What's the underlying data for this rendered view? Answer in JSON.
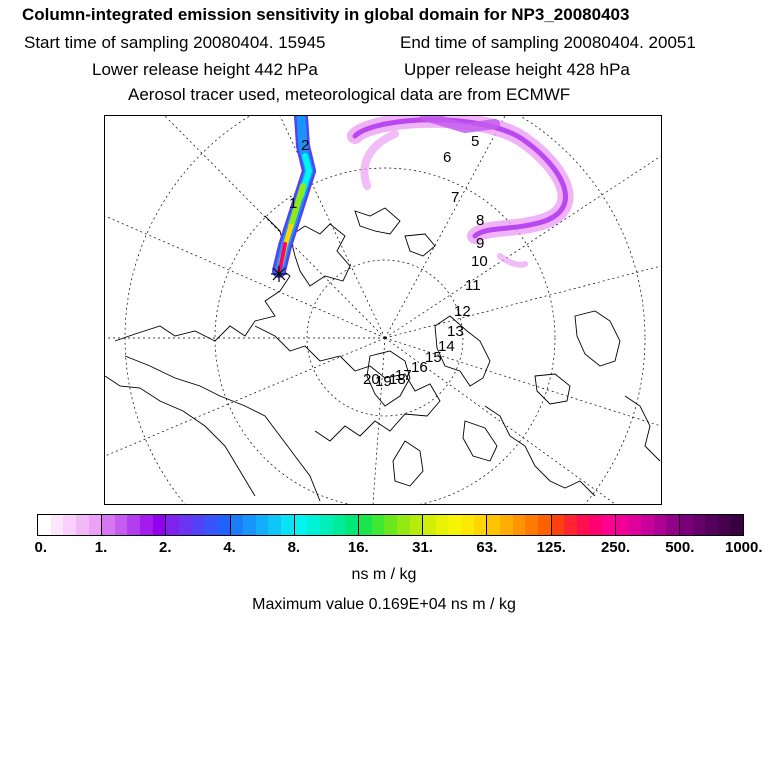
{
  "title": "Column-integrated emission sensitivity in global domain for NP3_20080403",
  "start_time": "Start time of sampling 20080404. 15945",
  "end_time": "End time of sampling 20080404. 20051",
  "lower_release": "Lower release height  442 hPa",
  "upper_release": "Upper release height  428 hPa",
  "tracer_info": "Aerosol tracer used, meteorological data are from ECMWF",
  "map": {
    "release_marker": "release-site-star",
    "day_labels": [
      "1",
      "2",
      "5",
      "6",
      "7",
      "8",
      "9",
      "10",
      "11",
      "12",
      "13",
      "14",
      "15",
      "16",
      "17",
      "18",
      "19",
      "20"
    ]
  },
  "colorbar": {
    "ticks": [
      "0.",
      "1.",
      "2.",
      "4.",
      "8.",
      "16.",
      "31.",
      "63.",
      "125.",
      "250.",
      "500.",
      "1000."
    ],
    "colors": [
      [
        "#ffffff",
        "#fce6fc",
        "#f8d0fb",
        "#f2b8f8",
        "#eca0f6"
      ],
      [
        "#d477f0",
        "#c45cef",
        "#b33cee",
        "#a41bee",
        "#9300f0"
      ],
      [
        "#7f22f0",
        "#6a34f2",
        "#5241f5",
        "#3a52f8",
        "#2060fb"
      ],
      [
        "#1a7efb",
        "#1795fa",
        "#12aefa",
        "#0ec7f8",
        "#0ae2f6"
      ],
      [
        "#00f5f0",
        "#00f2d6",
        "#00efb8",
        "#00ec9a",
        "#00e879"
      ],
      [
        "#19e64e",
        "#3fe832",
        "#6ae81f",
        "#93ea12",
        "#b7ec0a"
      ],
      [
        "#d2ee06",
        "#e8f204",
        "#f7f503",
        "#fce803",
        "#ffd600"
      ],
      [
        "#ffc400",
        "#ffad00",
        "#ff9300",
        "#ff7a00",
        "#ff6000"
      ],
      [
        "#ff4010",
        "#ff2430",
        "#ff0e50",
        "#ff0070",
        "#ff0090"
      ],
      [
        "#f20096",
        "#e0009c",
        "#c8009c",
        "#ae0096",
        "#920088"
      ],
      [
        "#7a0079",
        "#66006a",
        "#55005c",
        "#46004e",
        "#380040"
      ]
    ]
  },
  "units": "ns m / kg",
  "maximum": "Maximum value  0.169E+04 ns m / kg"
}
